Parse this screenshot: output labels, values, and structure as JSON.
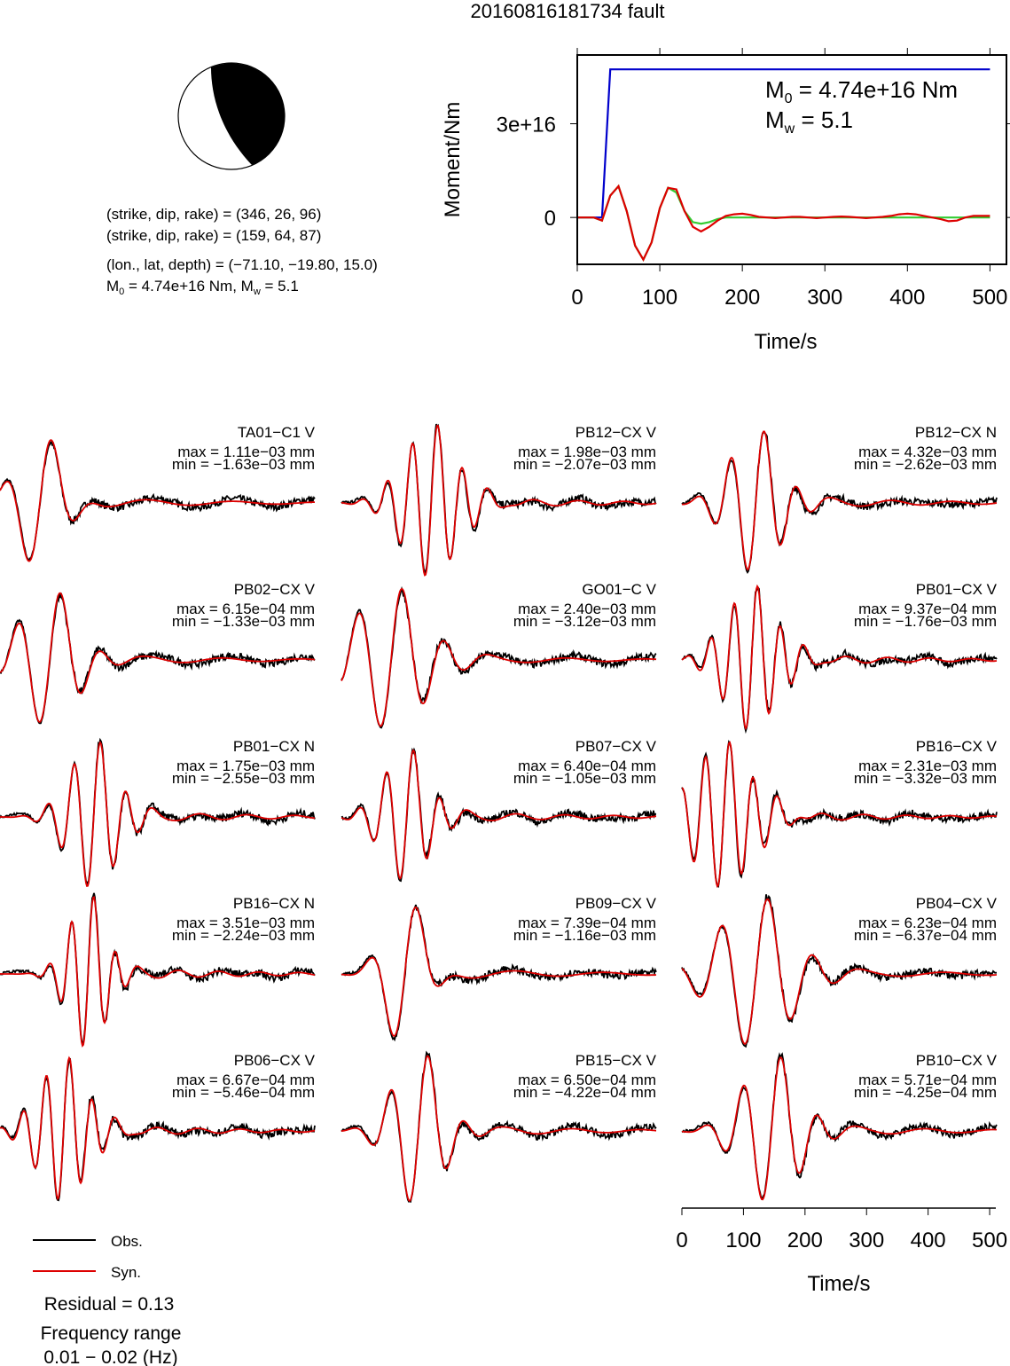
{
  "title": "20160816181734 fault",
  "mechanism": {
    "plane1": "(strike, dip, rake) = (346, 26, 96)",
    "plane2": "(strike, dip, rake) = (159, 64, 87)",
    "location": "(lon., lat, depth) = (−71.10, −19.80, 15.0)",
    "moment_parts": [
      "M",
      "0",
      " = 4.74e+16 Nm, M",
      "w",
      " = 5.1"
    ]
  },
  "chart_data": {
    "type": "line",
    "xlabel": "Time/s",
    "ylabel": "Moment/Nm",
    "annotations": [
      [
        "M",
        "0",
        " = 4.74e+16 Nm"
      ],
      [
        "M",
        "w",
        " = 5.1"
      ]
    ],
    "xlim": [
      0,
      520
    ],
    "xticks": [
      0,
      100,
      200,
      300,
      400,
      500
    ],
    "ylim": [
      -1.5e+16,
      5.2e+16
    ],
    "yticks": [
      0,
      {
        "value": 3e+16,
        "label": "3e+16"
      }
    ],
    "x": [
      0,
      10,
      20,
      30,
      40,
      50,
      60,
      70,
      80,
      90,
      100,
      110,
      120,
      130,
      140,
      150,
      160,
      170,
      180,
      190,
      200,
      210,
      220,
      230,
      240,
      250,
      260,
      270,
      280,
      290,
      300,
      310,
      320,
      330,
      340,
      350,
      360,
      370,
      380,
      390,
      400,
      410,
      420,
      430,
      440,
      450,
      460,
      470,
      480,
      490,
      500
    ],
    "series": [
      {
        "color": "#0000cc",
        "values": [
          0,
          0,
          0,
          0,
          4.74e+16,
          4.74e+16,
          4.74e+16,
          4.74e+16,
          4.74e+16,
          4.74e+16,
          4.74e+16,
          4.74e+16,
          4.74e+16,
          4.74e+16,
          4.74e+16,
          4.74e+16,
          4.74e+16,
          4.74e+16,
          4.74e+16,
          4.74e+16,
          4.74e+16,
          4.74e+16,
          4.74e+16,
          4.74e+16,
          4.74e+16,
          4.74e+16,
          4.74e+16,
          4.74e+16,
          4.74e+16,
          4.74e+16,
          4.74e+16,
          4.74e+16,
          4.74e+16,
          4.74e+16,
          4.74e+16,
          4.74e+16,
          4.74e+16,
          4.74e+16,
          4.74e+16,
          4.74e+16,
          4.74e+16,
          4.74e+16,
          4.74e+16,
          4.74e+16,
          4.74e+16,
          4.74e+16,
          4.74e+16,
          4.74e+16,
          4.74e+16,
          4.74e+16,
          4.74e+16
        ]
      },
      {
        "color": "#33cc33",
        "values": [
          0,
          0,
          0,
          -1000000000000000.0,
          7000000000000000.0,
          1e+16,
          2000000000000000.0,
          -9000000000000000.0,
          -1.35e+16,
          -8000000000000000.0,
          3000000000000000.0,
          9500000000000000.0,
          8000000000000000.0,
          2000000000000000.0,
          -1500000000000000.0,
          -2000000000000000.0,
          -1500000000000000.0,
          -500000000000000.0,
          0,
          0,
          0,
          0,
          0,
          0,
          0,
          0,
          0,
          0,
          0,
          0,
          0,
          0,
          0,
          0,
          0,
          0,
          0,
          0,
          0,
          0,
          0,
          0,
          0,
          0,
          0,
          0,
          0,
          0,
          0,
          0,
          0
        ]
      },
      {
        "color": "#dd0000",
        "values": [
          0,
          0,
          0,
          -1000000000000000.0,
          7000000000000000.0,
          1e+16,
          2000000000000000.0,
          -9000000000000000.0,
          -1.35e+16,
          -8000000000000000.0,
          3000000000000000.0,
          9500000000000000.0,
          9000000000000000.0,
          2000000000000000.0,
          -3000000000000000.0,
          -4500000000000000.0,
          -3000000000000000.0,
          -1000000000000000.0,
          500000000000000.0,
          1000000000000000.0,
          1200000000000000.0,
          800000000000000.0,
          200000000000000.0,
          0,
          -200000000000000.0,
          0,
          200000000000000.0,
          200000000000000.0,
          0,
          -200000000000000.0,
          0,
          200000000000000.0,
          300000000000000.0,
          200000000000000.0,
          0,
          -200000000000000.0,
          0,
          200000000000000.0,
          500000000000000.0,
          1000000000000000.0,
          1200000000000000.0,
          1000000000000000.0,
          500000000000000.0,
          0,
          -500000000000000.0,
          -1200000000000000.0,
          -1000000000000000.0,
          0,
          500000000000000.0,
          500000000000000.0,
          500000000000000.0
        ]
      }
    ]
  },
  "stations": [
    {
      "name": "TA01−C1 V",
      "max": "max = 1.11e−03 mm",
      "min": "min = −1.63e−03 mm"
    },
    {
      "name": "PB12−CX V",
      "max": "max = 1.98e−03 mm",
      "min": "min = −2.07e−03 mm"
    },
    {
      "name": "PB12−CX N",
      "max": "max = 4.32e−03 mm",
      "min": "min = −2.62e−03 mm"
    },
    {
      "name": "PB02−CX V",
      "max": "max = 6.15e−04 mm",
      "min": "min = −1.33e−03 mm"
    },
    {
      "name": "GO01−C V",
      "max": "max = 2.40e−03 mm",
      "min": "min = −3.12e−03 mm"
    },
    {
      "name": "PB01−CX V",
      "max": "max = 9.37e−04 mm",
      "min": "min = −1.76e−03 mm"
    },
    {
      "name": "PB01−CX N",
      "max": "max = 1.75e−03 mm",
      "min": "min = −2.55e−03 mm"
    },
    {
      "name": "PB07−CX V",
      "max": "max = 6.40e−04 mm",
      "min": "min = −1.05e−03 mm"
    },
    {
      "name": "PB16−CX V",
      "max": "max = 2.31e−03 mm",
      "min": "min = −3.32e−03 mm"
    },
    {
      "name": "PB16−CX N",
      "max": "max = 3.51e−03 mm",
      "min": "min = −2.24e−03 mm"
    },
    {
      "name": "PB09−CX V",
      "max": "max = 7.39e−04 mm",
      "min": "min = −1.16e−03 mm"
    },
    {
      "name": "PB04−CX V",
      "max": "max = 6.23e−04 mm",
      "min": "min = −6.37e−04 mm"
    },
    {
      "name": "PB06−CX V",
      "max": "max = 6.67e−04 mm",
      "min": "min = −5.46e−04 mm"
    },
    {
      "name": "PB15−CX V",
      "max": "max = 6.50e−04 mm",
      "min": "min = −4.22e−04 mm"
    },
    {
      "name": "PB10−CX V",
      "max": "max = 5.71e−04 mm",
      "min": "min = −4.25e−04 mm"
    }
  ],
  "waveform_axis": {
    "xlabel": "Time/s",
    "xlim": [
      0,
      510
    ],
    "xticks": [
      0,
      100,
      200,
      300,
      400,
      500
    ]
  },
  "legend": {
    "obs": "Obs.",
    "syn": "Syn.",
    "residual": "Residual = 0.13",
    "freq_title": "Frequency range",
    "freq": "0.01 − 0.02 (Hz)"
  }
}
